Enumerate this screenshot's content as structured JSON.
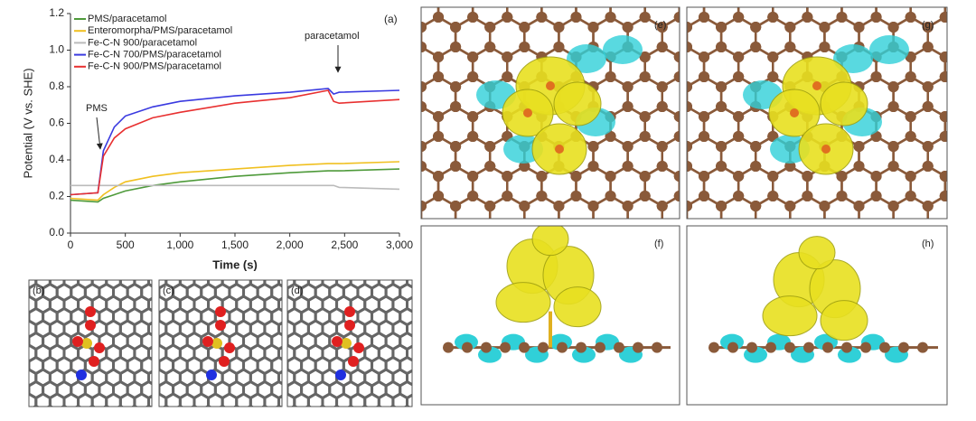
{
  "chart_data": {
    "type": "line",
    "label": "(a)",
    "x_label": "Time (s)",
    "y_label": "Potential (V vs. SHE)",
    "x": [
      0,
      250,
      300,
      400,
      500,
      750,
      1000,
      1500,
      2000,
      2350,
      2400,
      2450,
      3000
    ],
    "series": [
      {
        "name": "PMS/paracetamol",
        "color": "#4e9a3a",
        "values": [
          0.18,
          0.17,
          0.19,
          0.21,
          0.23,
          0.26,
          0.28,
          0.31,
          0.33,
          0.34,
          0.34,
          0.34,
          0.35
        ]
      },
      {
        "name": "Enteromorpha/PMS/paracetamol",
        "color": "#f0c020",
        "values": [
          0.19,
          0.18,
          0.21,
          0.25,
          0.28,
          0.31,
          0.33,
          0.35,
          0.37,
          0.38,
          0.38,
          0.38,
          0.39
        ]
      },
      {
        "name": "Fe-C-N 900/paracetamol",
        "color": "#bbbbbb",
        "values": [
          0.26,
          0.26,
          0.26,
          0.26,
          0.26,
          0.26,
          0.26,
          0.26,
          0.26,
          0.26,
          0.26,
          0.25,
          0.24
        ]
      },
      {
        "name": "Fe-C-N 700/PMS/paracetamol",
        "color": "#3a3ae0",
        "values": [
          0.21,
          0.22,
          0.45,
          0.58,
          0.64,
          0.69,
          0.72,
          0.75,
          0.77,
          0.79,
          0.76,
          0.77,
          0.78
        ]
      },
      {
        "name": "Fe-C-N 900/PMS/paracetamol",
        "color": "#e83030",
        "values": [
          0.21,
          0.22,
          0.42,
          0.52,
          0.57,
          0.63,
          0.66,
          0.71,
          0.74,
          0.78,
          0.72,
          0.71,
          0.73
        ]
      }
    ],
    "xlim": [
      0,
      3000
    ],
    "ylim": [
      0,
      1.2
    ],
    "xticks": [
      0,
      500,
      {
        "value": 1000,
        "label": "1,000"
      },
      {
        "value": 1500,
        "label": "1,500"
      },
      {
        "value": 2000,
        "label": "2,000"
      },
      {
        "value": 2500,
        "label": "2,500"
      },
      {
        "value": 3000,
        "label": "3,000"
      }
    ],
    "yticks": [
      {
        "value": 0,
        "label": "0.0"
      },
      0.2,
      0.4,
      0.6,
      0.8,
      {
        "value": 1,
        "label": "1.0"
      },
      1.2
    ],
    "annotations": [
      "PMS",
      "paracetamol"
    ]
  },
  "panels": [
    {
      "label": "(b)"
    },
    {
      "label": "(c)"
    },
    {
      "label": "(d)"
    },
    {
      "label": "(e)"
    },
    {
      "label": "(g)"
    },
    {
      "label": "(f)"
    },
    {
      "label": "(h)"
    }
  ]
}
